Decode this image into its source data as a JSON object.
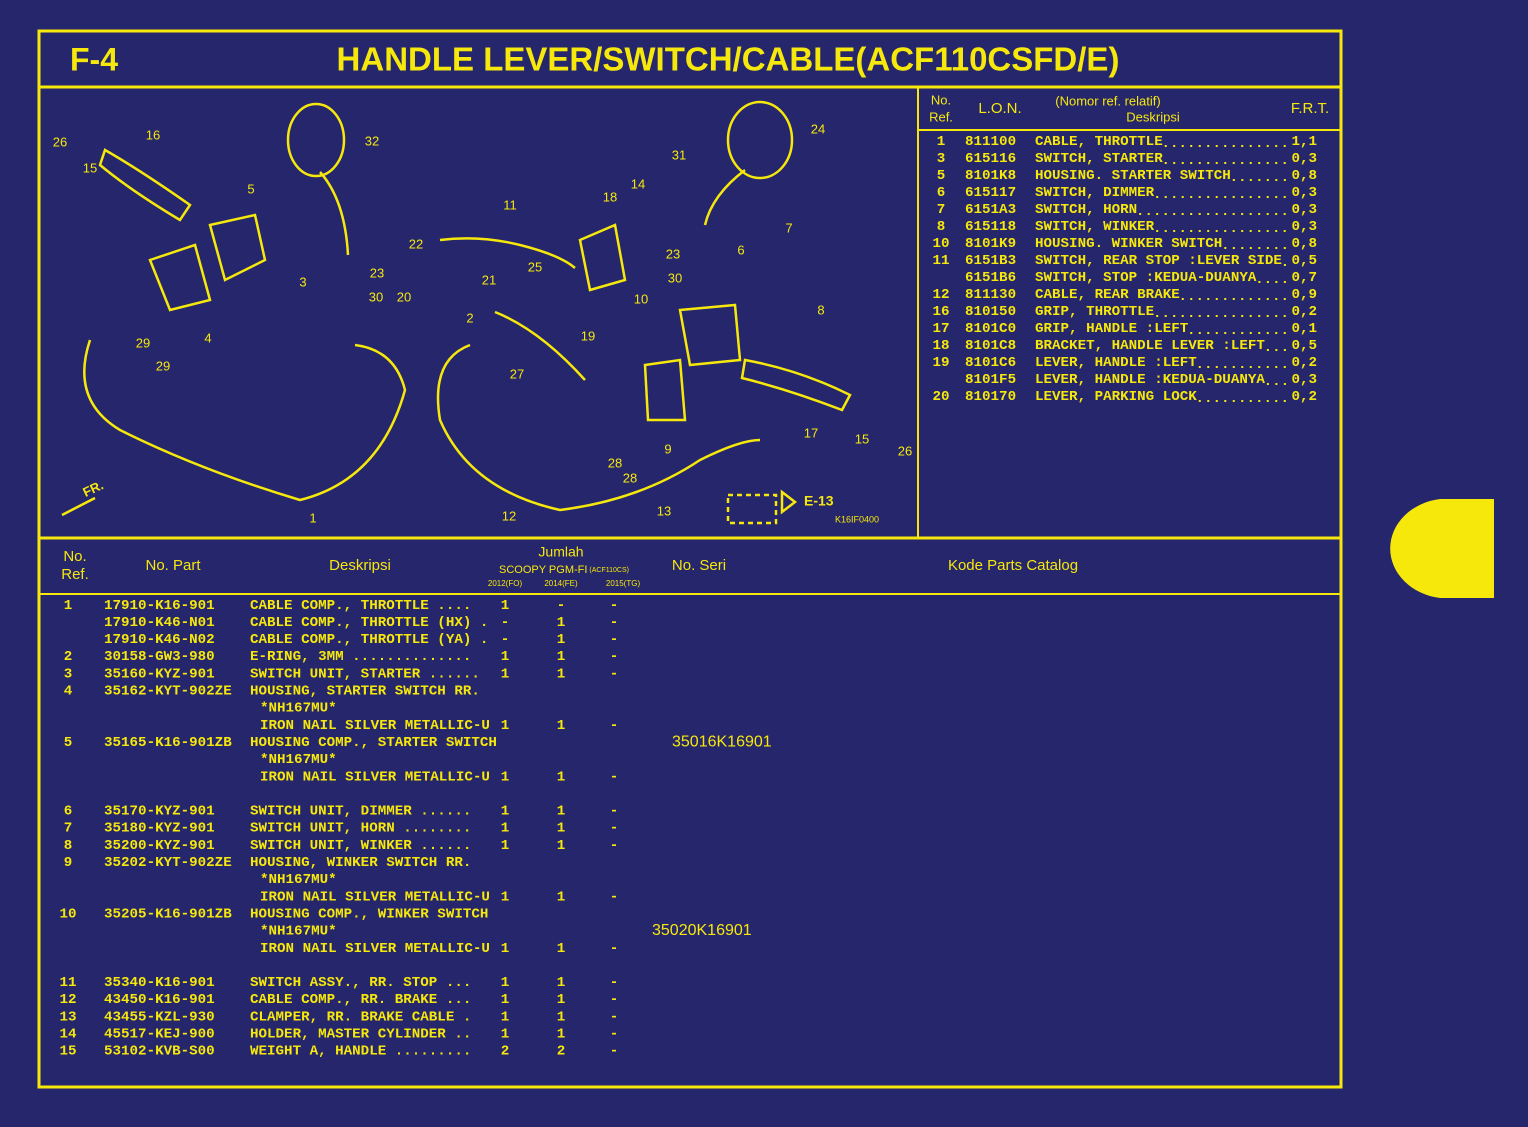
{
  "header": {
    "code": "F-4",
    "title": "HANDLE LEVER/SWITCH/CABLE(ACF110CSFD/E)"
  },
  "diagram": {
    "callouts": [
      "26",
      "16",
      "15",
      "32",
      "5",
      "3",
      "23",
      "30",
      "29",
      "29",
      "4",
      "22",
      "11",
      "18",
      "14",
      "31",
      "25",
      "21",
      "20",
      "2",
      "27",
      "19",
      "10",
      "24",
      "23",
      "30",
      "6",
      "7",
      "8",
      "9",
      "28",
      "28",
      "17",
      "15",
      "26",
      "1",
      "12",
      "13"
    ],
    "direction": "FR.",
    "reference": "E-13",
    "drawing_code": "K16IF0400"
  },
  "ref_table": {
    "headers": {
      "no_ref": [
        "No.",
        "Ref."
      ],
      "lon": "L.O.N.",
      "desc": [
        "(Nomor ref. relatif)",
        "Deskripsi"
      ],
      "frt": "F.R.T."
    },
    "rows": [
      [
        "1",
        "811100",
        "CABLE, THROTTLE",
        "1,1"
      ],
      [
        "3",
        "615116",
        "SWITCH, STARTER",
        "0,3"
      ],
      [
        "5",
        "8101K8",
        "HOUSING. STARTER SWITCH",
        "0,8"
      ],
      [
        "6",
        "615117",
        "SWITCH, DIMMER",
        "0,3"
      ],
      [
        "7",
        "6151A3",
        "SWITCH, HORN",
        "0,3"
      ],
      [
        "8",
        "615118",
        "SWITCH, WINKER",
        "0,3"
      ],
      [
        "10",
        "8101K9",
        "HOUSING. WINKER SWITCH",
        "0,8"
      ],
      [
        "11",
        "6151B3",
        "SWITCH, REAR STOP :LEVER SIDE",
        "0,5"
      ],
      [
        null,
        "6151B6",
        "SWITCH, STOP :KEDUA-DUANYA",
        "0,7"
      ],
      [
        "12",
        "811130",
        "CABLE, REAR BRAKE",
        "0,9"
      ],
      [
        "16",
        "810150",
        "GRIP, THROTTLE",
        "0,2"
      ],
      [
        "17",
        "8101C0",
        "GRIP, HANDLE :LEFT",
        "0,1"
      ],
      [
        "18",
        "8101C8",
        "BRACKET, HANDLE LEVER :LEFT",
        "0,5"
      ],
      [
        "19",
        "8101C6",
        "LEVER, HANDLE :LEFT",
        "0,2"
      ],
      [
        null,
        "8101F5",
        "LEVER, HANDLE :KEDUA-DUANYA",
        "0,3"
      ],
      [
        "20",
        "810170",
        "LEVER, PARKING LOCK",
        "0,2"
      ]
    ]
  },
  "parts_table": {
    "headers": {
      "no_ref": [
        "No.",
        "Ref."
      ],
      "part": "No. Part",
      "desc": "Deskripsi",
      "qty": "Jumlah",
      "model": "SCOOPY PGM-FI",
      "model_code": "(ACF110CS)",
      "years": [
        "2012(FO)",
        "2014(FE)",
        "2015(TG)"
      ],
      "serial": "No. Seri",
      "catalog": "Kode Parts Catalog"
    },
    "lines": [
      [
        "1",
        "17910-K16-901",
        "CABLE COMP., THROTTLE ....",
        "1",
        "-",
        "-",
        null
      ],
      [
        null,
        "17910-K46-N01",
        "CABLE COMP., THROTTLE (HX) .",
        "-",
        "1",
        "-",
        null
      ],
      [
        null,
        "17910-K46-N02",
        "CABLE COMP., THROTTLE (YA) .",
        "-",
        "1",
        "-",
        null
      ],
      [
        "2",
        "30158-GW3-980",
        "E-RING, 3MM ..............",
        "1",
        "1",
        "-",
        null
      ],
      [
        "3",
        "35160-KYZ-901",
        "SWITCH UNIT, STARTER ......",
        "1",
        "1",
        "-",
        null
      ],
      [
        "4",
        "35162-KYT-902ZE",
        "HOUSING, STARTER SWITCH RR.",
        null,
        null,
        null,
        null
      ],
      [
        null,
        null,
        "*NH167MU*",
        null,
        null,
        null,
        null
      ],
      [
        null,
        null,
        "IRON NAIL SILVER METALLIC-U",
        "1",
        "1",
        "-",
        null
      ],
      [
        "5",
        "35165-K16-901ZB",
        "HOUSING COMP., STARTER SWITCH",
        null,
        null,
        null,
        "35016K16901"
      ],
      [
        null,
        null,
        "*NH167MU*",
        null,
        null,
        null,
        null
      ],
      [
        null,
        null,
        "IRON NAIL SILVER METALLIC-U",
        "1",
        "1",
        "-",
        null
      ],
      [
        "6",
        "35170-KYZ-901",
        "SWITCH UNIT, DIMMER ......",
        "1",
        "1",
        "-",
        null
      ],
      [
        "7",
        "35180-KYZ-901",
        "SWITCH UNIT, HORN ........",
        "1",
        "1",
        "-",
        null
      ],
      [
        "8",
        "35200-KYZ-901",
        "SWITCH UNIT, WINKER ......",
        "1",
        "1",
        "-",
        null
      ],
      [
        "9",
        "35202-KYT-902ZE",
        "HOUSING, WINKER SWITCH RR.",
        null,
        null,
        null,
        null
      ],
      [
        null,
        null,
        "*NH167MU*",
        null,
        null,
        null,
        null
      ],
      [
        null,
        null,
        "IRON NAIL SILVER METALLIC-U",
        "1",
        "1",
        "-",
        null
      ],
      [
        "10",
        "35205-K16-901ZB",
        "HOUSING COMP., WINKER SWITCH",
        null,
        null,
        null,
        null
      ],
      [
        null,
        null,
        "*NH167MU*",
        null,
        null,
        null,
        "35020K16901"
      ],
      [
        null,
        null,
        "IRON NAIL SILVER METALLIC-U",
        "1",
        "1",
        "-",
        null
      ],
      [
        "11",
        "35340-K16-901",
        "SWITCH ASSY., RR. STOP ...",
        "1",
        "1",
        "-",
        null
      ],
      [
        "12",
        "43450-K16-901",
        "CABLE COMP., RR. BRAKE ...",
        "1",
        "1",
        "-",
        null
      ],
      [
        "13",
        "43455-KZL-930",
        "CLAMPER, RR. BRAKE CABLE .",
        "1",
        "1",
        "-",
        null
      ],
      [
        "14",
        "45517-KEJ-900",
        "HOLDER, MASTER CYLINDER ..",
        "1",
        "1",
        "-",
        null
      ],
      [
        "15",
        "53102-KVB-S00",
        "WEIGHT A, HANDLE .........",
        "2",
        "2",
        "-",
        null
      ]
    ]
  }
}
